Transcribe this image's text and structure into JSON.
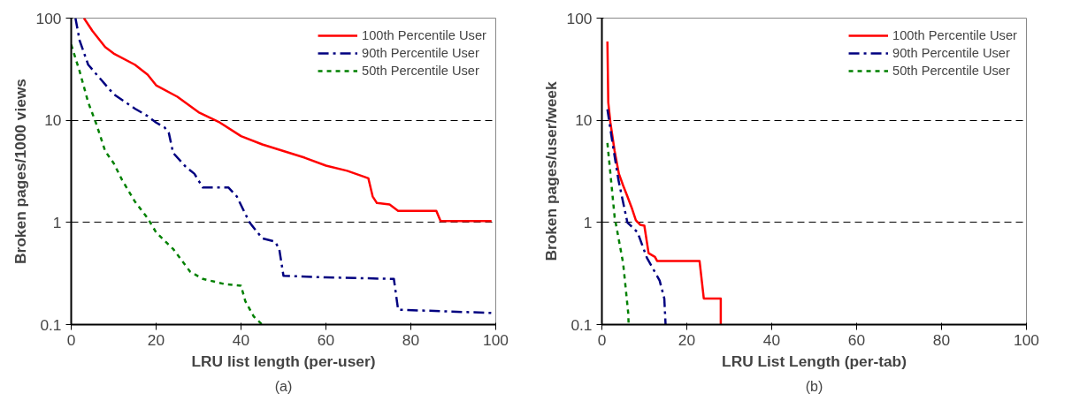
{
  "chart_data": [
    {
      "type": "line",
      "xlabel": "LRU list length (per-user)",
      "ylabel": "Broken pages/1000 views",
      "annotations": [
        "(a)"
      ],
      "log": "y",
      "xlim": [
        0,
        100
      ],
      "ylim": [
        0.1,
        100
      ],
      "xticks": [
        0,
        20,
        40,
        60,
        80,
        100
      ],
      "yticks": [
        0.1,
        1,
        10,
        100
      ],
      "grid": "y",
      "legend": "top right",
      "series": [
        {
          "name": "100th Percentile User",
          "color": "#ff0000",
          "line_style": "solid",
          "x": [
            3,
            5,
            8,
            10,
            15,
            18,
            20,
            25,
            30,
            35,
            40,
            45,
            50,
            55,
            60,
            65,
            69,
            70,
            71,
            72,
            75,
            77,
            86,
            87,
            99
          ],
          "values": [
            100,
            75,
            52,
            45,
            35,
            28,
            22,
            17,
            12,
            9.5,
            7,
            5.8,
            5,
            4.3,
            3.6,
            3.2,
            2.8,
            2.7,
            1.8,
            1.55,
            1.5,
            1.3,
            1.3,
            1.03,
            1.03
          ]
        },
        {
          "name": "90th Percentile User",
          "color": "#000080",
          "line_style": "dashed",
          "x": [
            1,
            2,
            4,
            6,
            10,
            15,
            18,
            20,
            22,
            23,
            24,
            27,
            29,
            31,
            37,
            39,
            42,
            45,
            48,
            49,
            50,
            60,
            76,
            77,
            99
          ],
          "values": [
            100,
            60,
            35,
            28,
            18,
            13,
            11,
            9.5,
            8.5,
            7.5,
            4.8,
            3.5,
            3,
            2.2,
            2.2,
            1.8,
            1.0,
            0.7,
            0.65,
            0.55,
            0.3,
            0.29,
            0.28,
            0.14,
            0.13
          ]
        },
        {
          "name": "50th Percentile User",
          "color": "#008000",
          "line_style": "dotted",
          "x": [
            0,
            2,
            4,
            6,
            8,
            10,
            12,
            15,
            18,
            20,
            24,
            28,
            31,
            36,
            40,
            41,
            43,
            45
          ],
          "values": [
            55,
            30,
            15,
            9,
            5,
            3.8,
            2.6,
            1.6,
            1.1,
            0.8,
            0.55,
            0.33,
            0.28,
            0.25,
            0.24,
            0.17,
            0.12,
            0.1
          ]
        }
      ]
    },
    {
      "type": "line",
      "xlabel": "LRU List Length (per-tab)",
      "ylabel": "Broken pages/user/week",
      "annotations": [
        "(b)"
      ],
      "log": "y",
      "xlim": [
        0,
        100
      ],
      "ylim": [
        0.1,
        100
      ],
      "xticks": [
        0,
        20,
        40,
        60,
        80,
        100
      ],
      "yticks": [
        0.1,
        1,
        10,
        100
      ],
      "grid": "y",
      "legend": "top right",
      "series": [
        {
          "name": "100th Percentile User",
          "color": "#ff0000",
          "line_style": "solid",
          "x": [
            1.3,
            1.5,
            2,
            3,
            4,
            5,
            6,
            7,
            8,
            9,
            10,
            11,
            12.5,
            13,
            23,
            24,
            28,
            28
          ],
          "values": [
            59,
            15,
            9.5,
            5,
            3,
            2.3,
            1.8,
            1.4,
            1.05,
            0.95,
            0.93,
            0.5,
            0.46,
            0.42,
            0.42,
            0.18,
            0.18,
            0.1
          ]
        },
        {
          "name": "90th Percentile User",
          "color": "#000080",
          "line_style": "dashed",
          "x": [
            1.3,
            2.5,
            3.9,
            6,
            8.4,
            10.6,
            13.6,
            14.7,
            15
          ],
          "values": [
            12.8,
            6,
            2.6,
            1.0,
            0.8,
            0.45,
            0.27,
            0.18,
            0.1
          ]
        },
        {
          "name": "50th Percentile User",
          "color": "#008000",
          "line_style": "dotted",
          "x": [
            1.3,
            3,
            5,
            6.2,
            6.3
          ],
          "values": [
            6,
            1.13,
            0.4,
            0.13,
            0.1
          ]
        }
      ]
    }
  ]
}
